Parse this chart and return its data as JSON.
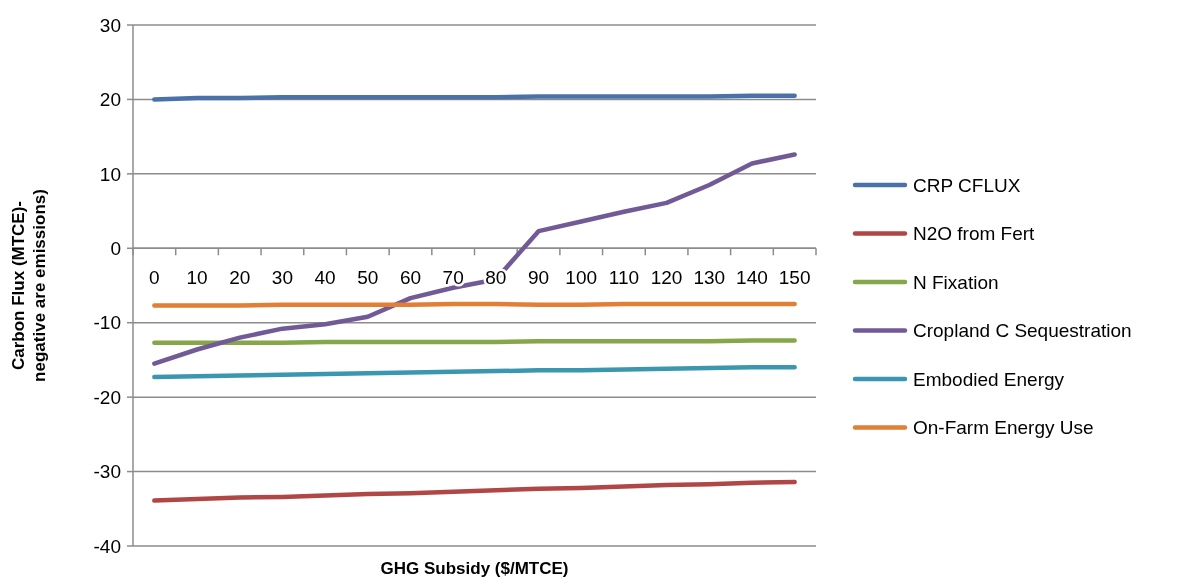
{
  "chart_data": {
    "type": "line",
    "xlabel": "GHG Subsidy ($/MTCE)",
    "ylabel": "Carbon Flux (MTCE)- negative are emissions)",
    "categories": [
      "0",
      "10",
      "20",
      "30",
      "40",
      "50",
      "60",
      "70",
      "80",
      "90",
      "100",
      "110",
      "120",
      "130",
      "140",
      "150"
    ],
    "ylim": [
      -40,
      30
    ],
    "yticks": [
      -40,
      -30,
      -20,
      -10,
      0,
      10,
      20,
      30
    ],
    "grid": "y",
    "legend": "right",
    "marker": "none",
    "series": [
      {
        "name": "CRP CFLUX",
        "color": "#4a72a8",
        "values": [
          20.0,
          20.2,
          20.2,
          20.3,
          20.3,
          20.3,
          20.3,
          20.3,
          20.3,
          20.4,
          20.4,
          20.4,
          20.4,
          20.4,
          20.5,
          20.5
        ]
      },
      {
        "name": "N2O from Fert",
        "color": "#b04645",
        "values": [
          -33.9,
          -33.7,
          -33.5,
          -33.4,
          -33.2,
          -33.0,
          -32.9,
          -32.7,
          -32.5,
          -32.3,
          -32.2,
          -32.0,
          -31.8,
          -31.7,
          -31.5,
          -31.4
        ]
      },
      {
        "name": "N Fixation",
        "color": "#87a64a",
        "values": [
          -12.7,
          -12.7,
          -12.7,
          -12.7,
          -12.6,
          -12.6,
          -12.6,
          -12.6,
          -12.6,
          -12.5,
          -12.5,
          -12.5,
          -12.5,
          -12.5,
          -12.4,
          -12.4
        ]
      },
      {
        "name": "Cropland C Sequestration",
        "color": "#725a96",
        "values": [
          -15.5,
          -13.6,
          -12.0,
          -10.8,
          -10.2,
          -9.2,
          -6.7,
          -5.3,
          -4.2,
          2.3,
          3.6,
          4.9,
          6.1,
          8.5,
          11.4,
          12.6
        ]
      },
      {
        "name": "Embodied Energy",
        "color": "#3b97b0",
        "values": [
          -17.3,
          -17.2,
          -17.1,
          -17.0,
          -16.9,
          -16.8,
          -16.7,
          -16.6,
          -16.5,
          -16.4,
          -16.4,
          -16.3,
          -16.2,
          -16.1,
          -16.0,
          -16.0
        ]
      },
      {
        "name": "On-Farm Energy Use",
        "color": "#e07f35",
        "values": [
          -7.7,
          -7.7,
          -7.7,
          -7.6,
          -7.6,
          -7.6,
          -7.6,
          -7.5,
          -7.5,
          -7.6,
          -7.6,
          -7.5,
          -7.5,
          -7.5,
          -7.5,
          -7.5
        ]
      }
    ]
  }
}
